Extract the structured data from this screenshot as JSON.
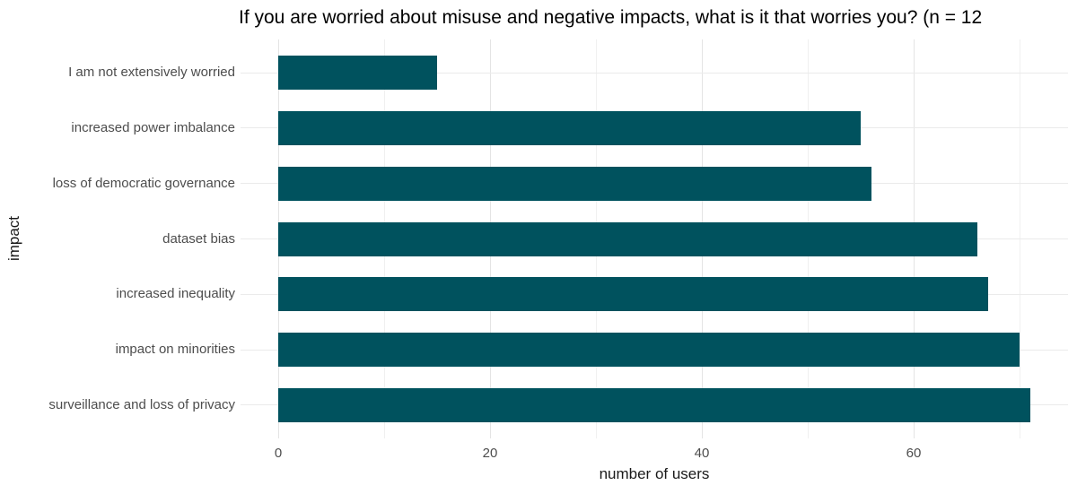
{
  "chart_data": {
    "type": "bar",
    "orientation": "horizontal",
    "title": "If you are worried about misuse and negative impacts, what is it that worries you? (n = 12",
    "xlabel": "number of users",
    "ylabel": "impact",
    "categories": [
      "I am not extensively worried",
      "increased power imbalance",
      "loss of democratic governance",
      "dataset bias",
      "increased inequality",
      "impact on minorities",
      "surveillance and loss of privacy"
    ],
    "values": [
      15,
      55,
      56,
      66,
      67,
      70,
      71
    ],
    "x_major_ticks": [
      0,
      20,
      40,
      60
    ],
    "x_tick_labels": [
      "0",
      "20",
      "40",
      "60"
    ],
    "x_minor_gridlines": [
      10,
      30,
      50,
      70
    ],
    "xlim": [
      0,
      74.55
    ],
    "grid": "on",
    "legend": "none",
    "bar_color": "#00525e",
    "gridline_color": "#ebebeb",
    "axis_text_color": "#4d4d4d",
    "axis_title_color": "#1a1a1a",
    "title_color": "#000000"
  }
}
